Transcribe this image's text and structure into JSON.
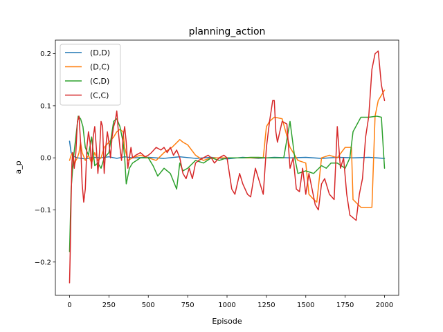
{
  "chart_data": {
    "type": "line",
    "title": "planning_action",
    "xlabel": "Episode",
    "ylabel": "a_p",
    "xlim": [
      -90,
      2090
    ],
    "ylim": [
      -0.264,
      0.226
    ],
    "xticks": [
      0,
      250,
      500,
      750,
      1000,
      1250,
      1500,
      1750,
      2000
    ],
    "yticks": [
      -0.2,
      -0.1,
      0.0,
      0.1,
      0.2
    ],
    "xtick_labels": [
      "0",
      "250",
      "500",
      "750",
      "1000",
      "1250",
      "1500",
      "1750",
      "2000"
    ],
    "ytick_labels": [
      "−0.2",
      "−0.1",
      "0.0",
      "0.1",
      "0.2"
    ],
    "grid": false,
    "legend_position": "top-left",
    "series": [
      {
        "name": "(D,D)",
        "color": "#1f77b4",
        "x": [
          0,
          10,
          25,
          50,
          100,
          150,
          200,
          250,
          300,
          350,
          400,
          500,
          600,
          700,
          800,
          900,
          1000,
          1100,
          1200,
          1300,
          1400,
          1500,
          1600,
          1700,
          1800,
          1900,
          2000
        ],
        "y": [
          0.032,
          0.01,
          0.003,
          0.0,
          -0.002,
          0.001,
          0.0,
          0.002,
          -0.001,
          0.002,
          0.0,
          0.001,
          -0.001,
          0.002,
          -0.001,
          0.001,
          -0.002,
          0.001,
          -0.001,
          0.001,
          0.0,
          0.001,
          -0.001,
          0.001,
          0.0,
          0.001,
          -0.001
        ]
      },
      {
        "name": "(D,C)",
        "color": "#ff7f0e",
        "x": [
          0,
          10,
          20,
          30,
          40,
          50,
          60,
          70,
          80,
          100,
          120,
          140,
          160,
          180,
          200,
          220,
          250,
          280,
          300,
          320,
          340,
          350,
          370,
          400,
          450,
          500,
          550,
          600,
          650,
          700,
          720,
          750,
          800,
          850,
          900,
          1000,
          1100,
          1200,
          1230,
          1250,
          1270,
          1300,
          1320,
          1350,
          1400,
          1420,
          1450,
          1500,
          1520,
          1550,
          1570,
          1600,
          1650,
          1700,
          1750,
          1790,
          1800,
          1850,
          1900,
          1920,
          1940,
          1960,
          1980,
          2000
        ],
        "y": [
          -0.005,
          0.005,
          0.01,
          -0.015,
          -0.005,
          0.0,
          0.01,
          0.03,
          0.01,
          -0.005,
          0.005,
          -0.01,
          0.01,
          -0.005,
          0.0,
          0.02,
          0.03,
          0.04,
          0.05,
          0.055,
          0.05,
          0.02,
          -0.005,
          0.0,
          0.005,
          0.0,
          -0.005,
          0.01,
          0.02,
          0.035,
          0.03,
          0.025,
          0.005,
          -0.005,
          0.0,
          0.0,
          0.0,
          0.0,
          0.0,
          0.06,
          0.07,
          0.078,
          0.077,
          0.075,
          0.02,
          0.01,
          -0.005,
          -0.01,
          -0.07,
          -0.08,
          -0.085,
          0.0,
          0.005,
          0.0,
          0.02,
          0.02,
          -0.08,
          -0.095,
          -0.095,
          -0.095,
          0.08,
          0.11,
          0.12,
          0.13
        ]
      },
      {
        "name": "(C,D)",
        "color": "#2ca02c",
        "x": [
          0,
          10,
          25,
          40,
          55,
          70,
          85,
          100,
          120,
          140,
          160,
          180,
          200,
          220,
          250,
          280,
          300,
          320,
          340,
          350,
          360,
          380,
          400,
          450,
          500,
          530,
          560,
          600,
          640,
          680,
          700,
          720,
          750,
          800,
          850,
          900,
          950,
          1000,
          1050,
          1100,
          1150,
          1200,
          1250,
          1300,
          1330,
          1360,
          1400,
          1430,
          1450,
          1500,
          1550,
          1600,
          1630,
          1660,
          1700,
          1750,
          1780,
          1800,
          1850,
          1900,
          1950,
          1980,
          2000
        ],
        "y": [
          -0.18,
          -0.06,
          0.0,
          0.04,
          0.08,
          0.075,
          0.06,
          0.02,
          0.005,
          0.04,
          -0.015,
          -0.01,
          -0.02,
          0.0,
          0.01,
          0.07,
          0.075,
          0.06,
          0.03,
          0.0,
          -0.05,
          -0.02,
          -0.01,
          0.0,
          0.0,
          -0.015,
          -0.035,
          -0.02,
          -0.03,
          -0.06,
          -0.01,
          -0.025,
          -0.02,
          -0.005,
          -0.01,
          0.0,
          -0.005,
          0.0,
          0.0,
          0.0,
          0.001,
          0.001,
          0.0,
          0.0,
          0.0,
          0.0,
          0.07,
          0.0,
          -0.03,
          -0.025,
          -0.03,
          -0.015,
          -0.02,
          -0.01,
          -0.01,
          -0.02,
          0.0,
          0.05,
          0.078,
          0.078,
          0.08,
          0.078,
          -0.02
        ]
      },
      {
        "name": "(C,C)",
        "color": "#d62728",
        "x": [
          0,
          5,
          10,
          15,
          20,
          30,
          40,
          50,
          60,
          70,
          80,
          90,
          100,
          110,
          120,
          130,
          140,
          150,
          160,
          170,
          180,
          190,
          200,
          210,
          220,
          230,
          240,
          250,
          260,
          270,
          280,
          290,
          300,
          310,
          320,
          330,
          340,
          350,
          360,
          370,
          380,
          390,
          400,
          420,
          450,
          480,
          500,
          520,
          550,
          580,
          600,
          620,
          640,
          660,
          680,
          700,
          720,
          740,
          760,
          780,
          800,
          820,
          850,
          880,
          900,
          920,
          950,
          980,
          1000,
          1030,
          1050,
          1080,
          1100,
          1130,
          1150,
          1180,
          1200,
          1230,
          1250,
          1270,
          1290,
          1300,
          1310,
          1320,
          1350,
          1380,
          1400,
          1420,
          1440,
          1460,
          1480,
          1500,
          1520,
          1540,
          1560,
          1580,
          1600,
          1620,
          1650,
          1680,
          1700,
          1720,
          1740,
          1760,
          1780,
          1800,
          1820,
          1840,
          1860,
          1880,
          1900,
          1920,
          1940,
          1960,
          1980,
          2000
        ],
        "y": [
          -0.24,
          -0.17,
          -0.08,
          -0.01,
          0.01,
          -0.02,
          0.01,
          0.07,
          0.08,
          0.03,
          -0.05,
          -0.085,
          -0.06,
          0.02,
          0.05,
          0.03,
          -0.02,
          0.04,
          0.06,
          0.02,
          -0.03,
          0.01,
          0.07,
          0.06,
          -0.03,
          0.02,
          0.05,
          0.03,
          0.0,
          0.04,
          0.06,
          0.07,
          0.09,
          0.05,
          0.02,
          -0.005,
          0.04,
          0.06,
          0.03,
          -0.02,
          0.0,
          0.02,
          0.0,
          0.005,
          0.01,
          0.002,
          0.005,
          0.01,
          0.02,
          0.015,
          0.02,
          0.01,
          0.02,
          0.005,
          0.015,
          0.0,
          -0.03,
          -0.04,
          -0.02,
          -0.04,
          -0.01,
          -0.005,
          0.0,
          0.005,
          0.0,
          -0.01,
          0.0,
          0.005,
          0.0,
          -0.06,
          -0.07,
          -0.03,
          -0.05,
          -0.07,
          -0.075,
          -0.02,
          -0.04,
          -0.07,
          0.02,
          0.07,
          0.11,
          0.11,
          0.05,
          0.03,
          0.07,
          0.065,
          -0.02,
          0.0,
          -0.06,
          -0.065,
          -0.02,
          -0.07,
          -0.03,
          -0.06,
          -0.09,
          -0.1,
          -0.05,
          -0.04,
          -0.07,
          -0.08,
          0.06,
          -0.02,
          0.0,
          -0.07,
          -0.11,
          -0.115,
          -0.12,
          -0.07,
          -0.04,
          0.04,
          0.08,
          0.17,
          0.2,
          0.205,
          0.14,
          0.11
        ]
      }
    ]
  }
}
